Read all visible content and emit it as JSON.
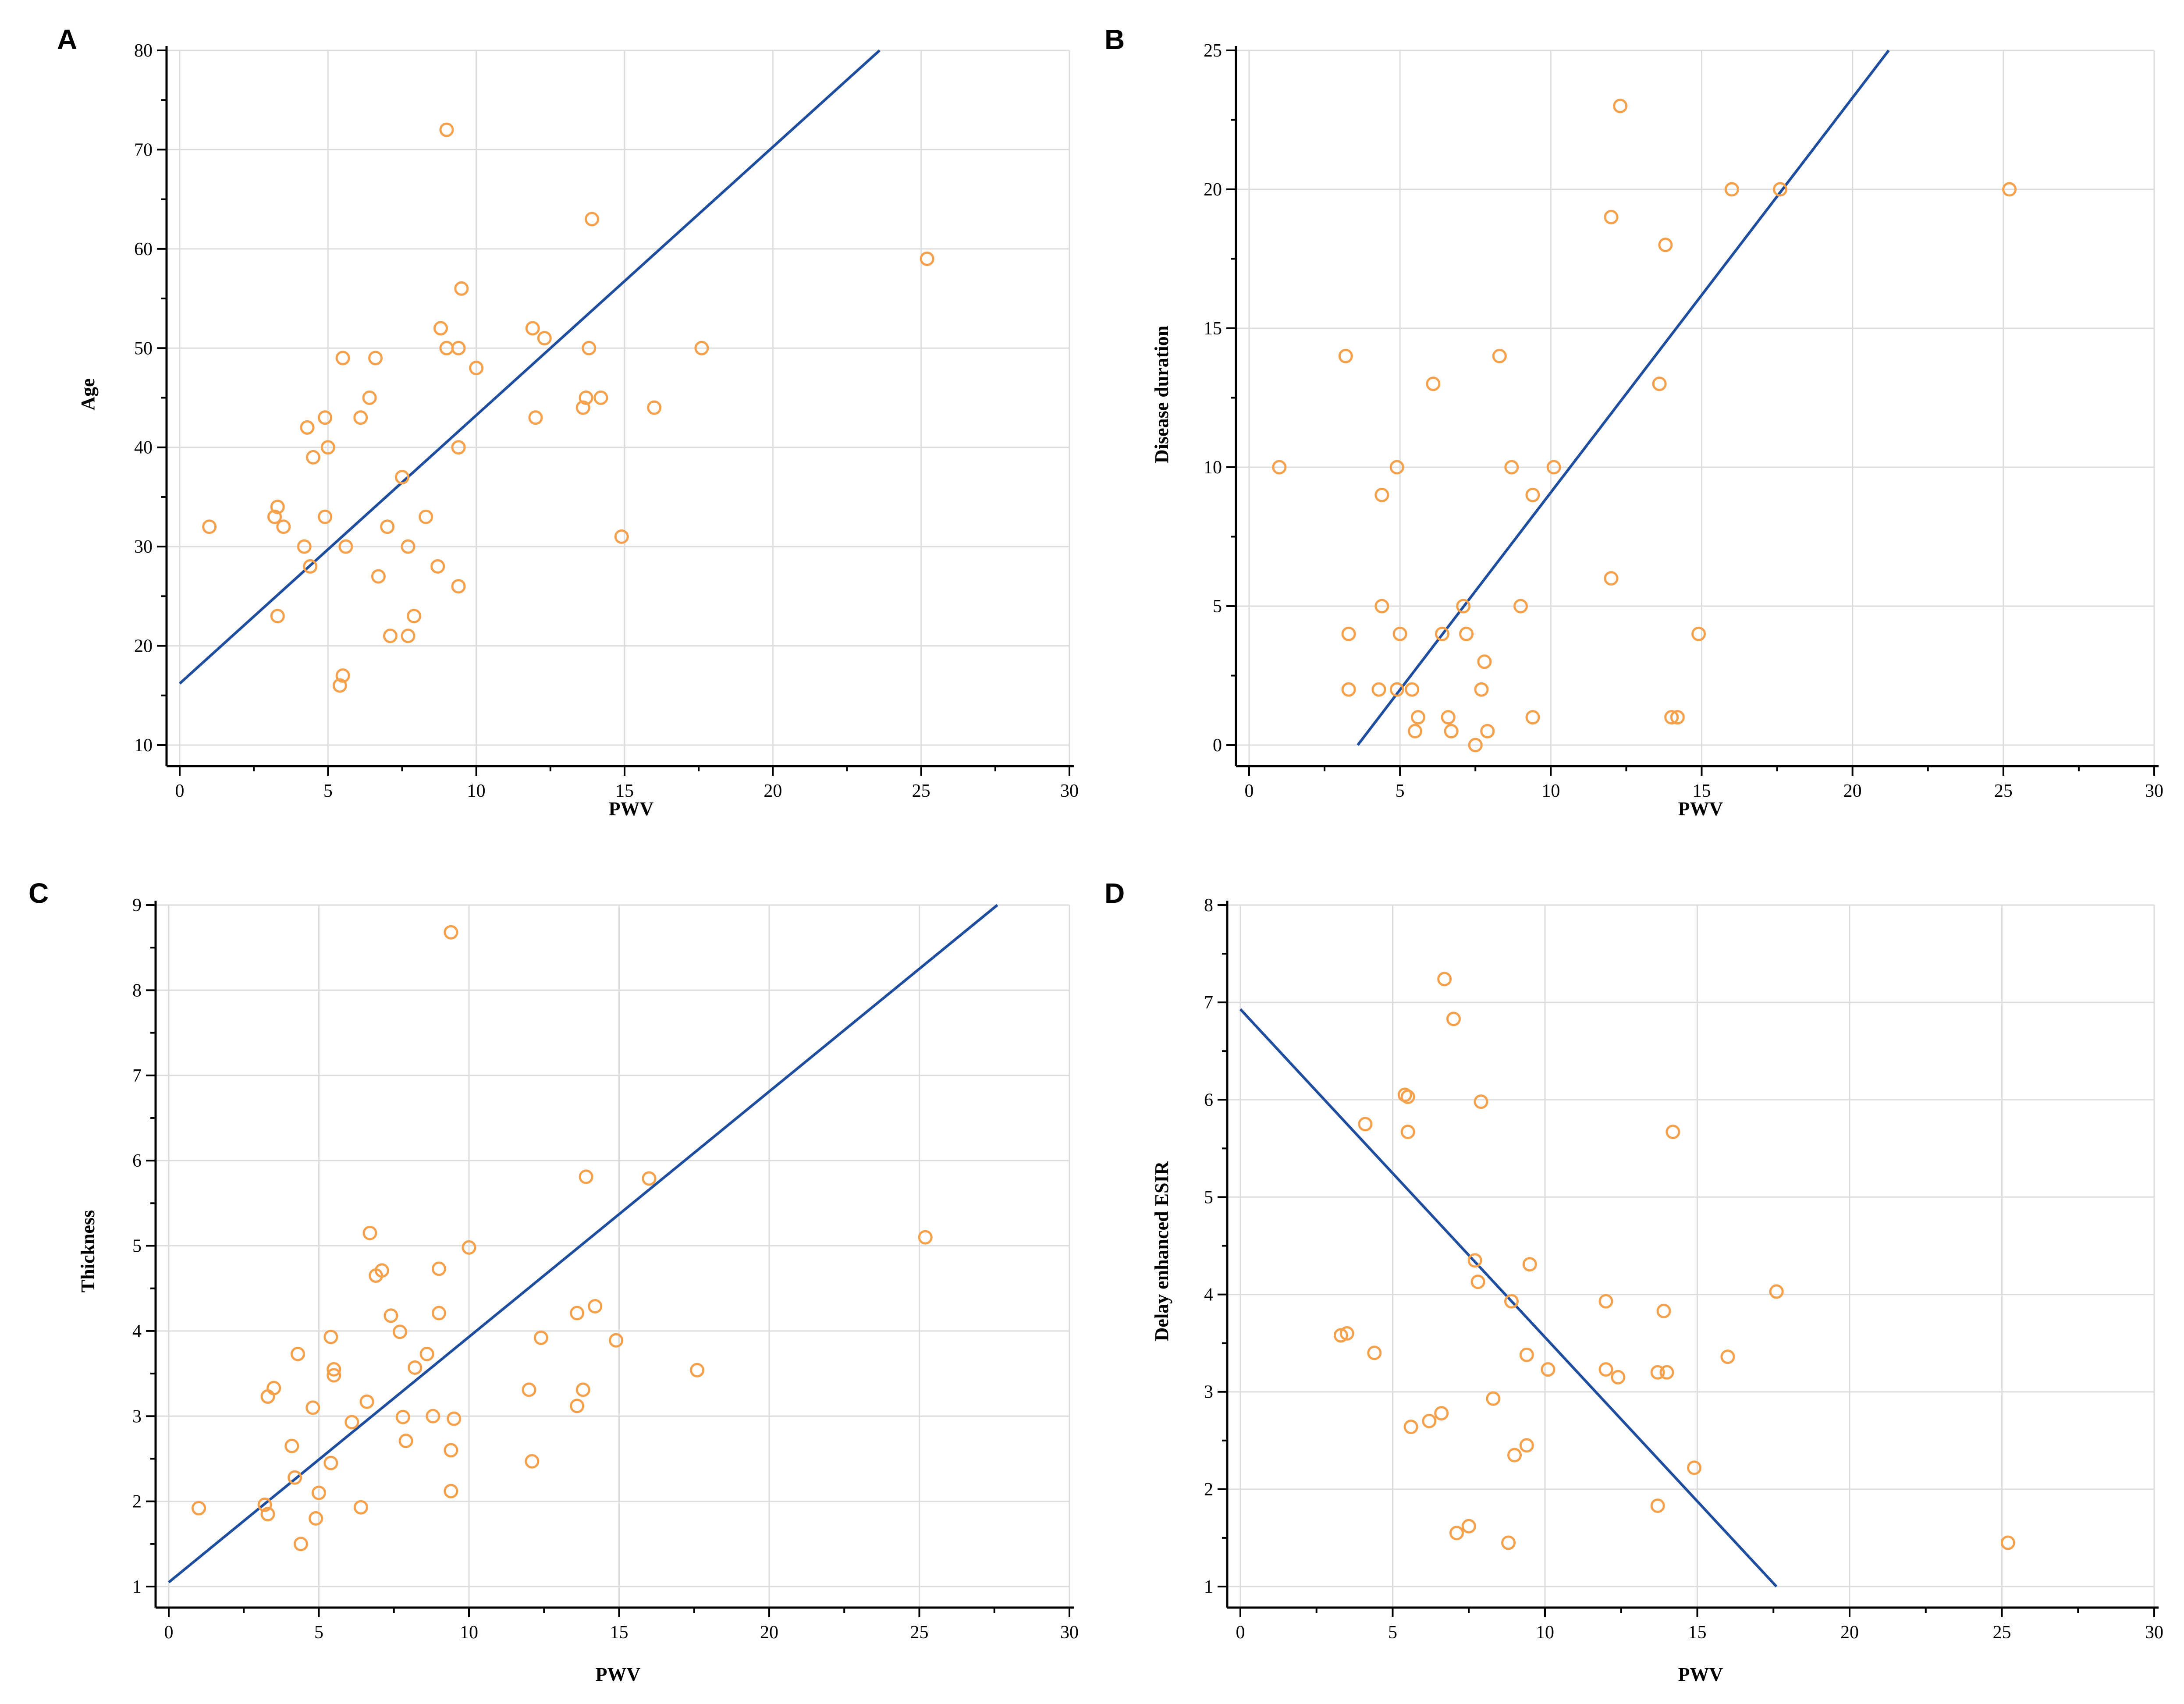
{
  "colors": {
    "point": "#F5A04A",
    "line": "#1F4E9E",
    "grid": "#dcdcdc"
  },
  "chart_data": [
    {
      "type": "scatter",
      "panel": "A",
      "xlabel": "PWV",
      "ylabel": "Age",
      "xlim": [
        0,
        30
      ],
      "ylim": [
        10,
        80
      ],
      "xticks": [
        0,
        5,
        10,
        15,
        20,
        25,
        30
      ],
      "yticks": [
        10,
        20,
        30,
        40,
        50,
        60,
        70,
        80
      ],
      "grid": true,
      "points": [
        [
          1.0,
          32
        ],
        [
          3.2,
          33
        ],
        [
          3.3,
          34
        ],
        [
          3.5,
          32
        ],
        [
          3.3,
          23
        ],
        [
          4.2,
          30
        ],
        [
          4.3,
          42
        ],
        [
          4.4,
          28
        ],
        [
          4.5,
          39
        ],
        [
          4.9,
          43
        ],
        [
          4.9,
          33
        ],
        [
          5.0,
          40
        ],
        [
          5.4,
          16
        ],
        [
          5.5,
          49
        ],
        [
          5.5,
          17
        ],
        [
          5.6,
          30
        ],
        [
          6.1,
          43
        ],
        [
          6.4,
          45
        ],
        [
          6.6,
          49
        ],
        [
          6.7,
          27
        ],
        [
          7.0,
          32
        ],
        [
          7.1,
          21
        ],
        [
          7.5,
          37
        ],
        [
          7.7,
          21
        ],
        [
          7.7,
          30
        ],
        [
          7.9,
          23
        ],
        [
          8.3,
          33
        ],
        [
          8.7,
          28
        ],
        [
          8.8,
          52
        ],
        [
          9.0,
          50
        ],
        [
          9.0,
          72
        ],
        [
          9.4,
          50
        ],
        [
          9.4,
          26
        ],
        [
          9.4,
          40
        ],
        [
          9.5,
          56
        ],
        [
          10.0,
          48
        ],
        [
          11.9,
          52
        ],
        [
          12.0,
          43
        ],
        [
          12.3,
          51
        ],
        [
          13.6,
          44
        ],
        [
          13.7,
          45
        ],
        [
          13.8,
          50
        ],
        [
          13.9,
          63
        ],
        [
          14.2,
          45
        ],
        [
          14.9,
          31
        ],
        [
          16.0,
          44
        ],
        [
          17.6,
          50
        ],
        [
          25.2,
          59
        ]
      ],
      "fit": [
        [
          0,
          16.2
        ],
        [
          23.6,
          80
        ]
      ]
    },
    {
      "type": "scatter",
      "panel": "B",
      "xlabel": "PWV",
      "ylabel": "Disease duration",
      "xlim": [
        0,
        30
      ],
      "ylim": [
        0,
        25
      ],
      "xticks": [
        0,
        5,
        10,
        15,
        20,
        25,
        30
      ],
      "yticks": [
        0,
        5,
        10,
        15,
        20,
        25
      ],
      "grid": true,
      "points": [
        [
          1.0,
          10
        ],
        [
          3.2,
          14
        ],
        [
          3.3,
          4
        ],
        [
          3.3,
          2
        ],
        [
          4.3,
          2
        ],
        [
          4.4,
          9
        ],
        [
          4.4,
          5
        ],
        [
          4.9,
          10
        ],
        [
          4.9,
          2
        ],
        [
          5.0,
          4
        ],
        [
          5.4,
          2
        ],
        [
          5.5,
          0.5
        ],
        [
          5.6,
          1
        ],
        [
          6.1,
          13
        ],
        [
          6.4,
          4
        ],
        [
          6.6,
          1
        ],
        [
          6.7,
          0.5
        ],
        [
          7.1,
          5
        ],
        [
          7.2,
          4
        ],
        [
          7.5,
          0
        ],
        [
          7.7,
          2
        ],
        [
          7.8,
          3
        ],
        [
          7.9,
          0.5
        ],
        [
          8.3,
          14
        ],
        [
          8.7,
          10
        ],
        [
          9.0,
          5
        ],
        [
          9.4,
          9
        ],
        [
          9.4,
          1
        ],
        [
          10.1,
          10
        ],
        [
          12.0,
          19
        ],
        [
          12.0,
          6
        ],
        [
          12.3,
          23
        ],
        [
          13.6,
          13
        ],
        [
          13.8,
          18
        ],
        [
          14.0,
          1
        ],
        [
          14.2,
          1
        ],
        [
          14.9,
          4
        ],
        [
          16.0,
          20
        ],
        [
          17.6,
          20
        ],
        [
          25.2,
          20
        ]
      ],
      "fit": [
        [
          3.6,
          0
        ],
        [
          21.2,
          25
        ]
      ]
    },
    {
      "type": "scatter",
      "panel": "C",
      "xlabel": "PWV",
      "ylabel": "Thickness",
      "xlim": [
        0,
        30
      ],
      "ylim": [
        1,
        9
      ],
      "xticks": [
        0,
        5,
        10,
        15,
        20,
        25,
        30
      ],
      "yticks": [
        1,
        2,
        3,
        4,
        5,
        6,
        7,
        8,
        9
      ],
      "grid": true,
      "points": [
        [
          1.0,
          1.92
        ],
        [
          3.2,
          1.96
        ],
        [
          3.3,
          1.85
        ],
        [
          3.3,
          3.23
        ],
        [
          3.5,
          3.33
        ],
        [
          4.1,
          2.65
        ],
        [
          4.2,
          2.28
        ],
        [
          4.3,
          3.73
        ],
        [
          4.4,
          1.5
        ],
        [
          4.8,
          3.1
        ],
        [
          4.9,
          1.8
        ],
        [
          5.0,
          2.1
        ],
        [
          5.4,
          2.45
        ],
        [
          5.4,
          3.93
        ],
        [
          5.5,
          3.48
        ],
        [
          5.5,
          3.55
        ],
        [
          6.1,
          2.93
        ],
        [
          6.4,
          1.93
        ],
        [
          6.6,
          3.17
        ],
        [
          6.7,
          5.15
        ],
        [
          6.9,
          4.65
        ],
        [
          7.1,
          4.71
        ],
        [
          7.4,
          4.18
        ],
        [
          7.7,
          3.99
        ],
        [
          7.8,
          2.99
        ],
        [
          7.9,
          2.71
        ],
        [
          8.2,
          3.57
        ],
        [
          8.6,
          3.73
        ],
        [
          8.8,
          3.0
        ],
        [
          9.0,
          4.73
        ],
        [
          9.0,
          4.21
        ],
        [
          9.4,
          2.6
        ],
        [
          9.4,
          2.12
        ],
        [
          9.5,
          2.97
        ],
        [
          9.4,
          8.68
        ],
        [
          10.0,
          4.98
        ],
        [
          12.0,
          3.31
        ],
        [
          12.1,
          2.47
        ],
        [
          12.4,
          3.92
        ],
        [
          13.6,
          4.21
        ],
        [
          13.6,
          3.12
        ],
        [
          13.8,
          3.31
        ],
        [
          13.9,
          5.81
        ],
        [
          14.2,
          4.29
        ],
        [
          14.9,
          3.89
        ],
        [
          16.0,
          5.79
        ],
        [
          17.6,
          3.54
        ],
        [
          25.2,
          5.1
        ]
      ],
      "fit": [
        [
          0,
          1.05
        ],
        [
          27.6,
          9
        ]
      ]
    },
    {
      "type": "scatter",
      "panel": "D",
      "xlabel": "PWV",
      "ylabel": "Delay enhanced ESIR",
      "xlim": [
        0,
        30
      ],
      "ylim": [
        1,
        8
      ],
      "xticks": [
        0,
        5,
        10,
        15,
        20,
        25,
        30
      ],
      "yticks": [
        1,
        2,
        3,
        4,
        5,
        6,
        7,
        8
      ],
      "grid": true,
      "points": [
        [
          3.3,
          3.58
        ],
        [
          3.5,
          3.6
        ],
        [
          4.1,
          5.75
        ],
        [
          4.4,
          3.4
        ],
        [
          5.4,
          6.05
        ],
        [
          5.5,
          6.03
        ],
        [
          5.5,
          5.67
        ],
        [
          5.6,
          2.64
        ],
        [
          6.2,
          2.7
        ],
        [
          6.6,
          2.78
        ],
        [
          6.7,
          7.24
        ],
        [
          7.0,
          6.83
        ],
        [
          7.1,
          1.55
        ],
        [
          7.5,
          1.62
        ],
        [
          7.7,
          4.35
        ],
        [
          7.8,
          4.13
        ],
        [
          7.9,
          5.98
        ],
        [
          8.3,
          2.93
        ],
        [
          8.8,
          1.45
        ],
        [
          8.9,
          3.93
        ],
        [
          9.0,
          2.35
        ],
        [
          9.4,
          3.38
        ],
        [
          9.4,
          2.45
        ],
        [
          9.5,
          4.31
        ],
        [
          10.1,
          3.23
        ],
        [
          12.0,
          3.93
        ],
        [
          12.0,
          3.23
        ],
        [
          12.4,
          3.15
        ],
        [
          13.7,
          1.83
        ],
        [
          13.7,
          3.2
        ],
        [
          13.9,
          3.83
        ],
        [
          14.0,
          3.2
        ],
        [
          14.2,
          5.67
        ],
        [
          14.9,
          2.22
        ],
        [
          16.0,
          3.36
        ],
        [
          17.6,
          4.03
        ],
        [
          25.2,
          1.45
        ]
      ],
      "fit": [
        [
          0,
          6.93
        ],
        [
          17.6,
          1
        ]
      ]
    }
  ]
}
